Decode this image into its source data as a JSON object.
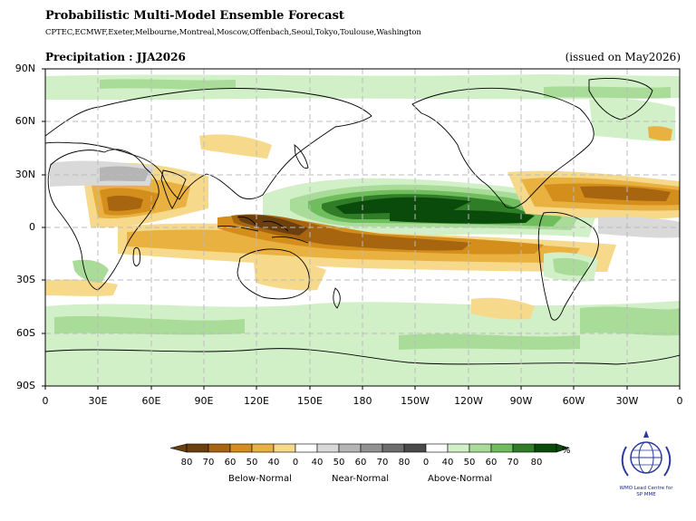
{
  "header": {
    "title": "Probabilistic Multi-Model Ensemble Forecast",
    "subtitle": "CPTEC,ECMWF,Exeter,Melbourne,Montreal,Moscow,Offenbach,Seoul,Tokyo,Toulouse,Washington",
    "variable": "Precipitation : JJA2026",
    "issued": "(issued on May2026)"
  },
  "axes": {
    "lat_labels": [
      "90N",
      "60N",
      "30N",
      "0",
      "30S",
      "60S",
      "90S"
    ],
    "lon_labels": [
      "0",
      "30E",
      "60E",
      "90E",
      "120E",
      "150E",
      "180",
      "150W",
      "120W",
      "90W",
      "60W",
      "30W",
      "0"
    ]
  },
  "legend": {
    "below_values": [
      "80",
      "70",
      "60",
      "50",
      "40"
    ],
    "near_values": [
      "0",
      "40",
      "50",
      "60",
      "70",
      "80"
    ],
    "above_values": [
      "0",
      "40",
      "50",
      "60",
      "70",
      "80"
    ],
    "unit": "%",
    "categories": [
      "Below-Normal",
      "Near-Normal",
      "Above-Normal"
    ],
    "colors_below": [
      "#6b3f0e",
      "#a8650f",
      "#d48e1c",
      "#e9b140",
      "#f6d98a"
    ],
    "color_white": "#ffffff",
    "colors_near": [
      "#d9d9d9",
      "#b5b5b5",
      "#929292",
      "#6d6d6d",
      "#4a4a4a"
    ],
    "colors_above": [
      "#d2f0c8",
      "#a8dc98",
      "#6fbd5c",
      "#2f7d26",
      "#0a4a0a"
    ]
  },
  "logo": {
    "text_line1": "WMO Lead Centre for",
    "text_line2": "SP MME"
  }
}
